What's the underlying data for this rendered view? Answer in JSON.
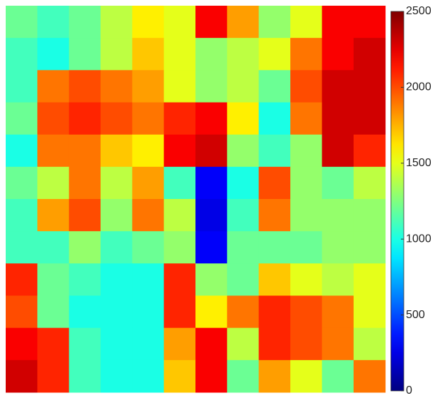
{
  "chart_data": {
    "type": "heatmap",
    "clim": [
      0,
      2500
    ],
    "cticks": [
      0,
      500,
      1000,
      1500,
      2000,
      2500
    ],
    "colormap": "jet",
    "z": [
      [
        1200,
        1100,
        1200,
        1400,
        1600,
        1500,
        2200,
        1800,
        1300,
        1500,
        2200,
        2200
      ],
      [
        1100,
        1000,
        1200,
        1400,
        1700,
        1500,
        1300,
        1400,
        1500,
        1900,
        2200,
        2300
      ],
      [
        1100,
        1900,
        2000,
        1900,
        1800,
        1500,
        1300,
        1400,
        1200,
        2000,
        2300,
        2300
      ],
      [
        1200,
        2000,
        2100,
        2000,
        1900,
        2100,
        2200,
        1600,
        1000,
        1900,
        2300,
        2300
      ],
      [
        1000,
        1900,
        1900,
        1700,
        1600,
        2200,
        2300,
        1300,
        1100,
        1300,
        2300,
        2100
      ],
      [
        1200,
        1400,
        1900,
        1400,
        1800,
        1100,
        300,
        1000,
        2000,
        1300,
        1200,
        1400
      ],
      [
        1100,
        1800,
        2000,
        1300,
        1900,
        1400,
        250,
        1100,
        1900,
        1300,
        1300,
        1300
      ],
      [
        1100,
        1100,
        1300,
        1100,
        1200,
        1300,
        300,
        1200,
        1200,
        1200,
        1300,
        1300
      ],
      [
        2100,
        1200,
        1100,
        1000,
        1000,
        2100,
        1300,
        1200,
        1700,
        1500,
        1400,
        1500
      ],
      [
        2000,
        1200,
        1000,
        1000,
        1000,
        2100,
        1600,
        1900,
        2100,
        2000,
        1900,
        1500
      ],
      [
        2200,
        2100,
        1100,
        1000,
        1000,
        1800,
        2200,
        1400,
        2100,
        2000,
        1900,
        1400
      ],
      [
        2300,
        2100,
        1100,
        1000,
        1000,
        1700,
        2200,
        1200,
        1800,
        1500,
        1200,
        1900
      ]
    ]
  }
}
